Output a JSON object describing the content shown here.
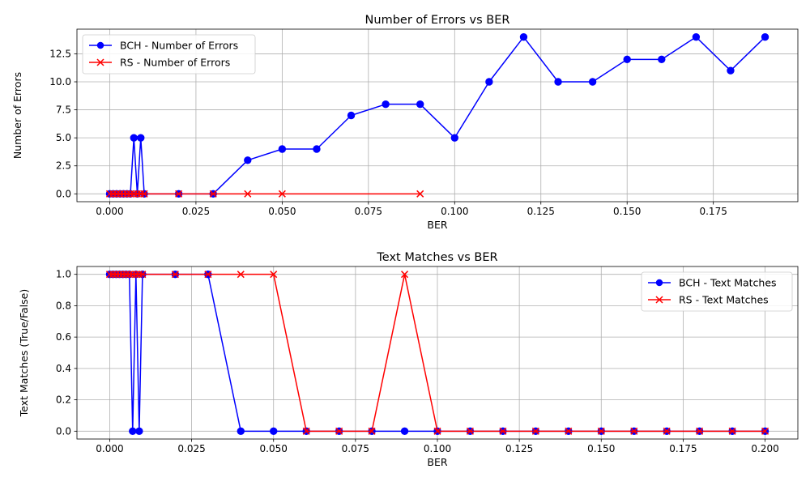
{
  "chart_data": [
    {
      "type": "line",
      "title": "Number of Errors vs BER",
      "xlabel": "BER",
      "ylabel": "Number of Errors",
      "xlim": [
        -0.0095,
        0.1995
      ],
      "ylim": [
        -0.7,
        14.7
      ],
      "xticks": [
        0.0,
        0.025,
        0.05,
        0.075,
        0.1,
        0.125,
        0.15,
        0.175
      ],
      "xtick_labels": [
        "0.000",
        "0.025",
        "0.050",
        "0.075",
        "0.100",
        "0.125",
        "0.150",
        "0.175"
      ],
      "yticks": [
        0,
        2.5,
        5,
        7.5,
        10,
        12.5
      ],
      "ytick_labels": [
        "0.0",
        "2.5",
        "5.0",
        "7.5",
        "10.0",
        "12.5"
      ],
      "grid": true,
      "legend_position": "upper-left",
      "series": [
        {
          "name": "BCH - Number of Errors",
          "color": "#0000ff",
          "marker": "circle",
          "x": [
            0.0,
            0.001,
            0.002,
            0.003,
            0.004,
            0.005,
            0.006,
            0.007,
            0.008,
            0.009,
            0.01,
            0.02,
            0.03,
            0.04,
            0.05,
            0.06,
            0.07,
            0.08,
            0.09,
            0.1,
            0.11,
            0.12,
            0.13,
            0.14,
            0.15,
            0.16,
            0.17,
            0.18,
            0.19
          ],
          "y": [
            0,
            0,
            0,
            0,
            0,
            0,
            0,
            5,
            0,
            5,
            0,
            0,
            0,
            3,
            4,
            4,
            7,
            8,
            8,
            5,
            10,
            14,
            10,
            10,
            12,
            12,
            14,
            11,
            14
          ]
        },
        {
          "name": "RS - Number of Errors",
          "color": "#ff0000",
          "marker": "x",
          "x": [
            0.0,
            0.001,
            0.002,
            0.003,
            0.004,
            0.005,
            0.006,
            0.007,
            0.008,
            0.009,
            0.01,
            0.02,
            0.03,
            0.04,
            0.05,
            0.09
          ],
          "y": [
            0,
            0,
            0,
            0,
            0,
            0,
            0,
            0,
            0,
            0,
            0,
            0,
            0,
            0,
            0,
            0
          ]
        }
      ]
    },
    {
      "type": "line",
      "title": "Text Matches vs BER",
      "xlabel": "BER",
      "ylabel": "Text Matches (True/False)",
      "xlim": [
        -0.01,
        0.21
      ],
      "ylim": [
        -0.05,
        1.05
      ],
      "xticks": [
        0.0,
        0.025,
        0.05,
        0.075,
        0.1,
        0.125,
        0.15,
        0.175,
        0.2
      ],
      "xtick_labels": [
        "0.000",
        "0.025",
        "0.050",
        "0.075",
        "0.100",
        "0.125",
        "0.150",
        "0.175",
        "0.200"
      ],
      "yticks": [
        0,
        0.2,
        0.4,
        0.6,
        0.8,
        1.0
      ],
      "ytick_labels": [
        "0.0",
        "0.2",
        "0.4",
        "0.6",
        "0.8",
        "1.0"
      ],
      "grid": true,
      "legend_position": "upper-right",
      "series": [
        {
          "name": "BCH - Text Matches",
          "color": "#0000ff",
          "marker": "circle",
          "x": [
            0.0,
            0.001,
            0.002,
            0.003,
            0.004,
            0.005,
            0.006,
            0.007,
            0.008,
            0.009,
            0.01,
            0.02,
            0.03,
            0.04,
            0.05,
            0.06,
            0.07,
            0.08,
            0.09,
            0.1,
            0.11,
            0.12,
            0.13,
            0.14,
            0.15,
            0.16,
            0.17,
            0.18,
            0.19,
            0.2
          ],
          "y": [
            1,
            1,
            1,
            1,
            1,
            1,
            1,
            0,
            1,
            0,
            1,
            1,
            1,
            0,
            0,
            0,
            0,
            0,
            0,
            0,
            0,
            0,
            0,
            0,
            0,
            0,
            0,
            0,
            0,
            0
          ]
        },
        {
          "name": "RS - Text Matches",
          "color": "#ff0000",
          "marker": "x",
          "x": [
            0.0,
            0.001,
            0.002,
            0.003,
            0.004,
            0.005,
            0.006,
            0.007,
            0.008,
            0.009,
            0.01,
            0.02,
            0.03,
            0.04,
            0.05,
            0.06,
            0.07,
            0.08,
            0.09,
            0.1,
            0.11,
            0.12,
            0.13,
            0.14,
            0.15,
            0.16,
            0.17,
            0.18,
            0.19,
            0.2
          ],
          "y": [
            1,
            1,
            1,
            1,
            1,
            1,
            1,
            1,
            1,
            1,
            1,
            1,
            1,
            1,
            1,
            0,
            0,
            0,
            1,
            0,
            0,
            0,
            0,
            0,
            0,
            0,
            0,
            0,
            0,
            0
          ]
        }
      ]
    }
  ]
}
